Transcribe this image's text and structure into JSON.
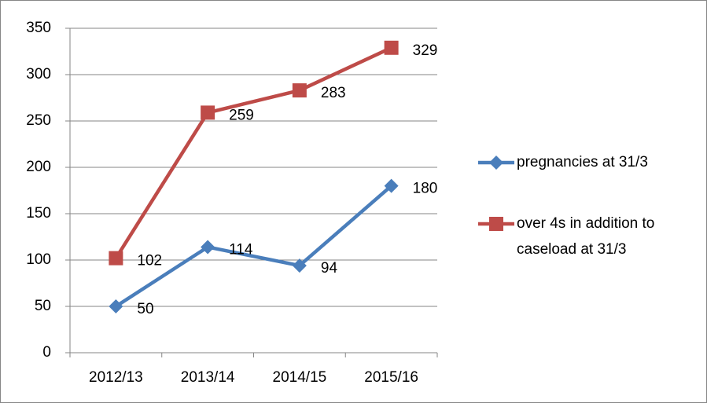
{
  "chart_data": {
    "type": "line",
    "categories": [
      "2012/13",
      "2013/14",
      "2014/15",
      "2015/16"
    ],
    "series": [
      {
        "name": "pregnancies at 31/3",
        "color": "#4a7ebb",
        "marker": "diamond",
        "values": [
          50,
          114,
          94,
          180
        ]
      },
      {
        "name": "over 4s in addition to caseload at 31/3",
        "color": "#be4b48",
        "marker": "square",
        "values": [
          102,
          259,
          283,
          329
        ]
      }
    ],
    "ylim": [
      0,
      350
    ],
    "yticks": [
      0,
      50,
      100,
      150,
      200,
      250,
      300,
      350
    ],
    "grid": true,
    "legend": "right"
  }
}
